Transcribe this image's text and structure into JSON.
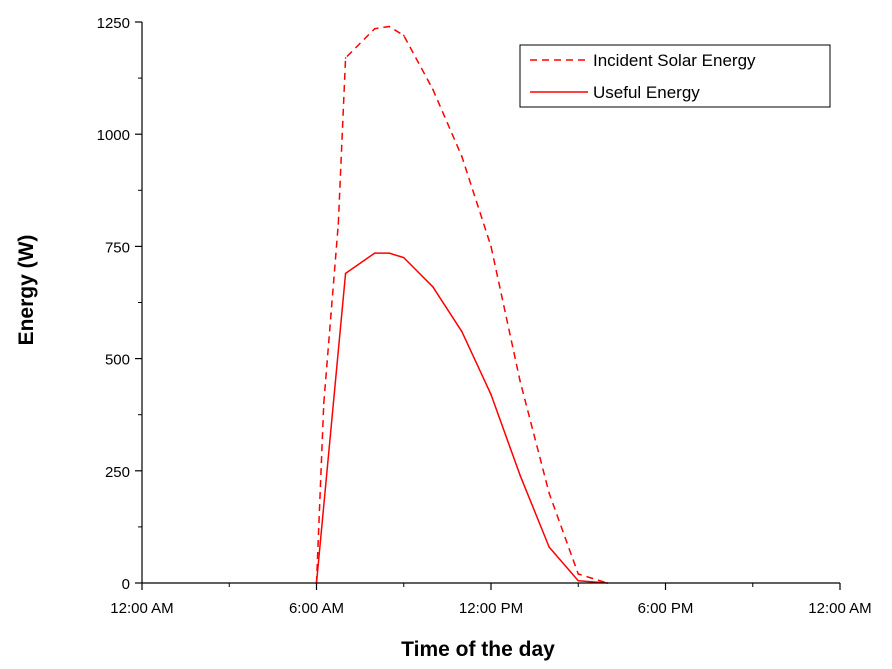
{
  "chart_data": {
    "type": "line",
    "title": "",
    "xlabel": "Time of the day",
    "ylabel": "Energy (W)",
    "x_unit": "hours",
    "xlim": [
      0,
      24
    ],
    "ylim": [
      0,
      1250
    ],
    "x_ticks": [
      0,
      6,
      12,
      18,
      24
    ],
    "x_tick_labels": [
      "12:00 AM",
      "6:00 AM",
      "12:00 PM",
      "6:00 PM",
      "12:00 AM"
    ],
    "y_ticks": [
      0,
      250,
      500,
      750,
      1000,
      1250
    ],
    "y_tick_labels": [
      "0",
      "250",
      "500",
      "750",
      "1000",
      "1250"
    ],
    "grid": false,
    "legend_position": "top-right",
    "series": [
      {
        "name": "Incident Solar Energy",
        "style": "dashed",
        "color": "#ff0000",
        "x": [
          6.0,
          6.25,
          6.5,
          6.75,
          7.0,
          8.0,
          8.5,
          9.0,
          10.0,
          11.0,
          12.0,
          13.0,
          14.0,
          15.0,
          16.0
        ],
        "y": [
          0,
          400,
          600,
          800,
          1170,
          1235,
          1240,
          1220,
          1100,
          950,
          750,
          450,
          200,
          20,
          0
        ]
      },
      {
        "name": "Useful Energy",
        "style": "solid",
        "color": "#ff0000",
        "x": [
          6.0,
          7.0,
          8.0,
          8.5,
          9.0,
          10.0,
          11.0,
          12.0,
          13.0,
          14.0,
          15.0,
          16.0
        ],
        "y": [
          0,
          690,
          735,
          735,
          725,
          660,
          560,
          420,
          240,
          80,
          5,
          0
        ]
      }
    ]
  }
}
